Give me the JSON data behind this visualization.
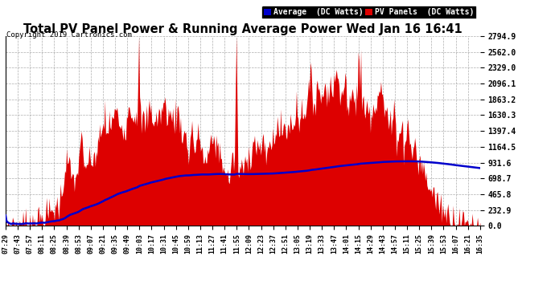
{
  "title": "Total PV Panel Power & Running Average Power Wed Jan 16 16:41",
  "copyright": "Copyright 2019 Cartronics.com",
  "legend_avg": "Average  (DC Watts)",
  "legend_pv": "PV Panels  (DC Watts)",
  "bg_color": "#ffffff",
  "plot_bg_color": "#ffffff",
  "grid_color": "#999999",
  "pv_color": "#dd0000",
  "avg_color": "#0000cc",
  "ymin": 0.0,
  "ymax": 2794.9,
  "yticks": [
    0.0,
    232.9,
    465.8,
    698.7,
    931.6,
    1164.5,
    1397.4,
    1630.3,
    1863.2,
    2096.1,
    2329.0,
    2562.0,
    2794.9
  ],
  "xtick_labels": [
    "07:29",
    "07:43",
    "07:57",
    "08:11",
    "08:25",
    "08:39",
    "08:53",
    "09:07",
    "09:21",
    "09:35",
    "09:49",
    "10:03",
    "10:17",
    "10:31",
    "10:45",
    "10:59",
    "11:13",
    "11:27",
    "11:41",
    "11:55",
    "12:09",
    "12:23",
    "12:37",
    "12:51",
    "13:05",
    "13:19",
    "13:33",
    "13:47",
    "14:01",
    "14:15",
    "14:29",
    "14:43",
    "14:57",
    "15:11",
    "15:25",
    "15:39",
    "15:53",
    "16:07",
    "16:21",
    "16:35"
  ]
}
